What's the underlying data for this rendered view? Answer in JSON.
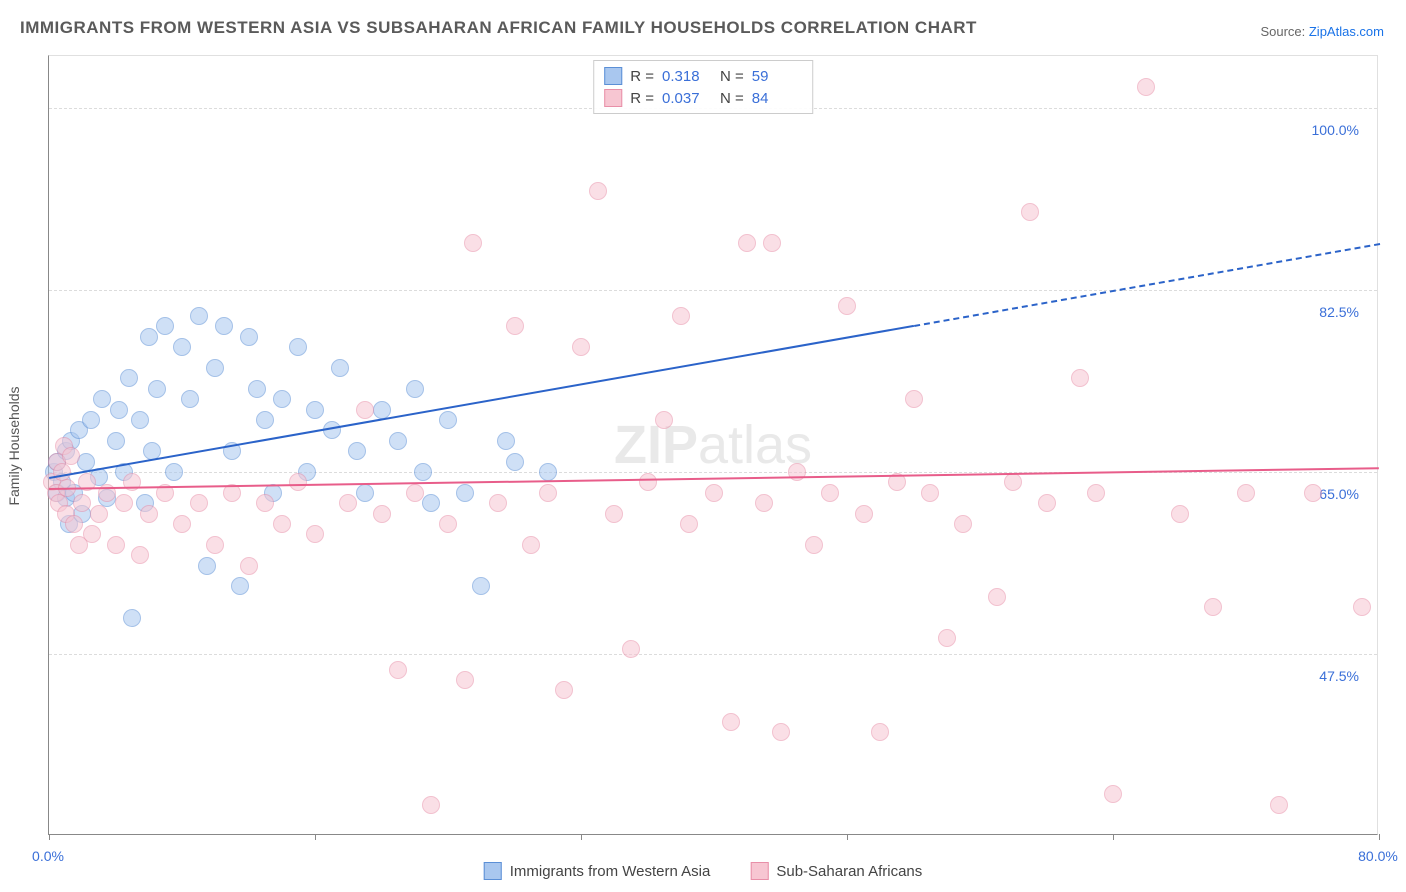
{
  "title": "IMMIGRANTS FROM WESTERN ASIA VS SUBSAHARAN AFRICAN FAMILY HOUSEHOLDS CORRELATION CHART",
  "source": {
    "prefix": "Source: ",
    "name": "ZipAtlas.com"
  },
  "ylabel": "Family Households",
  "watermark": "ZIPatlas",
  "chart": {
    "type": "scatter",
    "xlim": [
      0,
      80
    ],
    "ylim": [
      30,
      105
    ],
    "xticks": [
      0,
      16,
      32,
      48,
      64,
      80
    ],
    "xtick_labels": {
      "0": "0.0%",
      "80": "80.0%"
    },
    "yticks": [
      47.5,
      65.0,
      82.5,
      100.0
    ],
    "ytick_labels": [
      "47.5%",
      "65.0%",
      "82.5%",
      "100.0%"
    ],
    "grid_color": "#dcdcdc",
    "axis_color": "#888888",
    "tick_label_color": "#3a6fd8",
    "background_color": "#ffffff",
    "marker_radius": 9,
    "marker_opacity": 0.55
  },
  "series": [
    {
      "id": "blue",
      "name": "Immigrants from Western Asia",
      "color_fill": "#a9c7ef",
      "color_stroke": "#5b8fd6",
      "line_color": "#2b63c9",
      "R": "0.318",
      "N": "59",
      "regression": {
        "x0": 0,
        "y0": 64.5,
        "x_solid_end": 52,
        "x1": 80,
        "y1": 87
      },
      "points": [
        [
          0.3,
          65
        ],
        [
          0.5,
          63
        ],
        [
          0.5,
          66
        ],
        [
          0.8,
          64
        ],
        [
          1.0,
          62.5
        ],
        [
          1.0,
          67
        ],
        [
          1.2,
          60
        ],
        [
          1.3,
          68
        ],
        [
          1.5,
          63
        ],
        [
          1.8,
          69
        ],
        [
          2.0,
          61
        ],
        [
          2.2,
          66
        ],
        [
          2.5,
          70
        ],
        [
          3.0,
          64.5
        ],
        [
          3.2,
          72
        ],
        [
          3.5,
          62.5
        ],
        [
          4.0,
          68
        ],
        [
          4.2,
          71
        ],
        [
          4.5,
          65
        ],
        [
          4.8,
          74
        ],
        [
          5.0,
          51
        ],
        [
          5.5,
          70
        ],
        [
          5.8,
          62
        ],
        [
          6.0,
          78
        ],
        [
          6.2,
          67
        ],
        [
          6.5,
          73
        ],
        [
          7.0,
          79
        ],
        [
          7.5,
          65
        ],
        [
          8.0,
          77
        ],
        [
          8.5,
          72
        ],
        [
          9.0,
          80
        ],
        [
          9.5,
          56
        ],
        [
          10.0,
          75
        ],
        [
          10.5,
          79
        ],
        [
          11.0,
          67
        ],
        [
          11.5,
          54
        ],
        [
          12.0,
          78
        ],
        [
          12.5,
          73
        ],
        [
          13.0,
          70
        ],
        [
          13.5,
          63
        ],
        [
          14.0,
          72
        ],
        [
          15.0,
          77
        ],
        [
          15.5,
          65
        ],
        [
          16.0,
          71
        ],
        [
          17.0,
          69
        ],
        [
          17.5,
          75
        ],
        [
          18.5,
          67
        ],
        [
          19.0,
          63
        ],
        [
          20.0,
          71
        ],
        [
          21.0,
          68
        ],
        [
          22.0,
          73
        ],
        [
          22.5,
          65
        ],
        [
          23.0,
          62
        ],
        [
          24.0,
          70
        ],
        [
          25.0,
          63
        ],
        [
          26.0,
          54
        ],
        [
          27.5,
          68
        ],
        [
          28.0,
          66
        ],
        [
          30.0,
          65
        ]
      ]
    },
    {
      "id": "pink",
      "name": "Sub-Saharan Africans",
      "color_fill": "#f7c6d2",
      "color_stroke": "#e88fa8",
      "line_color": "#e85d8a",
      "R": "0.037",
      "N": "84",
      "regression": {
        "x0": 0,
        "y0": 63.5,
        "x_solid_end": 80,
        "x1": 80,
        "y1": 65.5
      },
      "points": [
        [
          0.2,
          64
        ],
        [
          0.4,
          63
        ],
        [
          0.5,
          66
        ],
        [
          0.6,
          62
        ],
        [
          0.8,
          65
        ],
        [
          0.9,
          67.5
        ],
        [
          1.0,
          61
        ],
        [
          1.1,
          63.5
        ],
        [
          1.3,
          66.5
        ],
        [
          1.5,
          60
        ],
        [
          1.8,
          58
        ],
        [
          2.0,
          62
        ],
        [
          2.3,
          64
        ],
        [
          2.6,
          59
        ],
        [
          3.0,
          61
        ],
        [
          3.5,
          63
        ],
        [
          4.0,
          58
        ],
        [
          4.5,
          62
        ],
        [
          5.0,
          64
        ],
        [
          5.5,
          57
        ],
        [
          6.0,
          61
        ],
        [
          7.0,
          63
        ],
        [
          8.0,
          60
        ],
        [
          9.0,
          62
        ],
        [
          10.0,
          58
        ],
        [
          11.0,
          63
        ],
        [
          12.0,
          56
        ],
        [
          13.0,
          62
        ],
        [
          14.0,
          60
        ],
        [
          15.0,
          64
        ],
        [
          16.0,
          59
        ],
        [
          18.0,
          62
        ],
        [
          19.0,
          71
        ],
        [
          20.0,
          61
        ],
        [
          21.0,
          46
        ],
        [
          22.0,
          63
        ],
        [
          23.0,
          33
        ],
        [
          24.0,
          60
        ],
        [
          25.0,
          45
        ],
        [
          25.5,
          87
        ],
        [
          27.0,
          62
        ],
        [
          28.0,
          79
        ],
        [
          29.0,
          58
        ],
        [
          30.0,
          63
        ],
        [
          31.0,
          44
        ],
        [
          32.0,
          77
        ],
        [
          33.0,
          92
        ],
        [
          34.0,
          61
        ],
        [
          35.0,
          48
        ],
        [
          36.0,
          64
        ],
        [
          37.0,
          70
        ],
        [
          38.0,
          80
        ],
        [
          38.5,
          60
        ],
        [
          40.0,
          63
        ],
        [
          41.0,
          41
        ],
        [
          42.0,
          87
        ],
        [
          43.0,
          62
        ],
        [
          43.5,
          87
        ],
        [
          44.0,
          40
        ],
        [
          45.0,
          65
        ],
        [
          46.0,
          58
        ],
        [
          47.0,
          63
        ],
        [
          48.0,
          81
        ],
        [
          49.0,
          61
        ],
        [
          50.0,
          40
        ],
        [
          51.0,
          64
        ],
        [
          52.0,
          72
        ],
        [
          53.0,
          63
        ],
        [
          54.0,
          49
        ],
        [
          55.0,
          60
        ],
        [
          57.0,
          53
        ],
        [
          58.0,
          64
        ],
        [
          59.0,
          90
        ],
        [
          60.0,
          62
        ],
        [
          62.0,
          74
        ],
        [
          63.0,
          63
        ],
        [
          64.0,
          34
        ],
        [
          66.0,
          102
        ],
        [
          68.0,
          61
        ],
        [
          70.0,
          52
        ],
        [
          72.0,
          63
        ],
        [
          74.0,
          33
        ],
        [
          76.0,
          63
        ],
        [
          79.0,
          52
        ]
      ]
    }
  ],
  "legend_top": {
    "r_label": "R =",
    "n_label": "N ="
  },
  "legend_bottom_order": [
    "blue",
    "pink"
  ]
}
